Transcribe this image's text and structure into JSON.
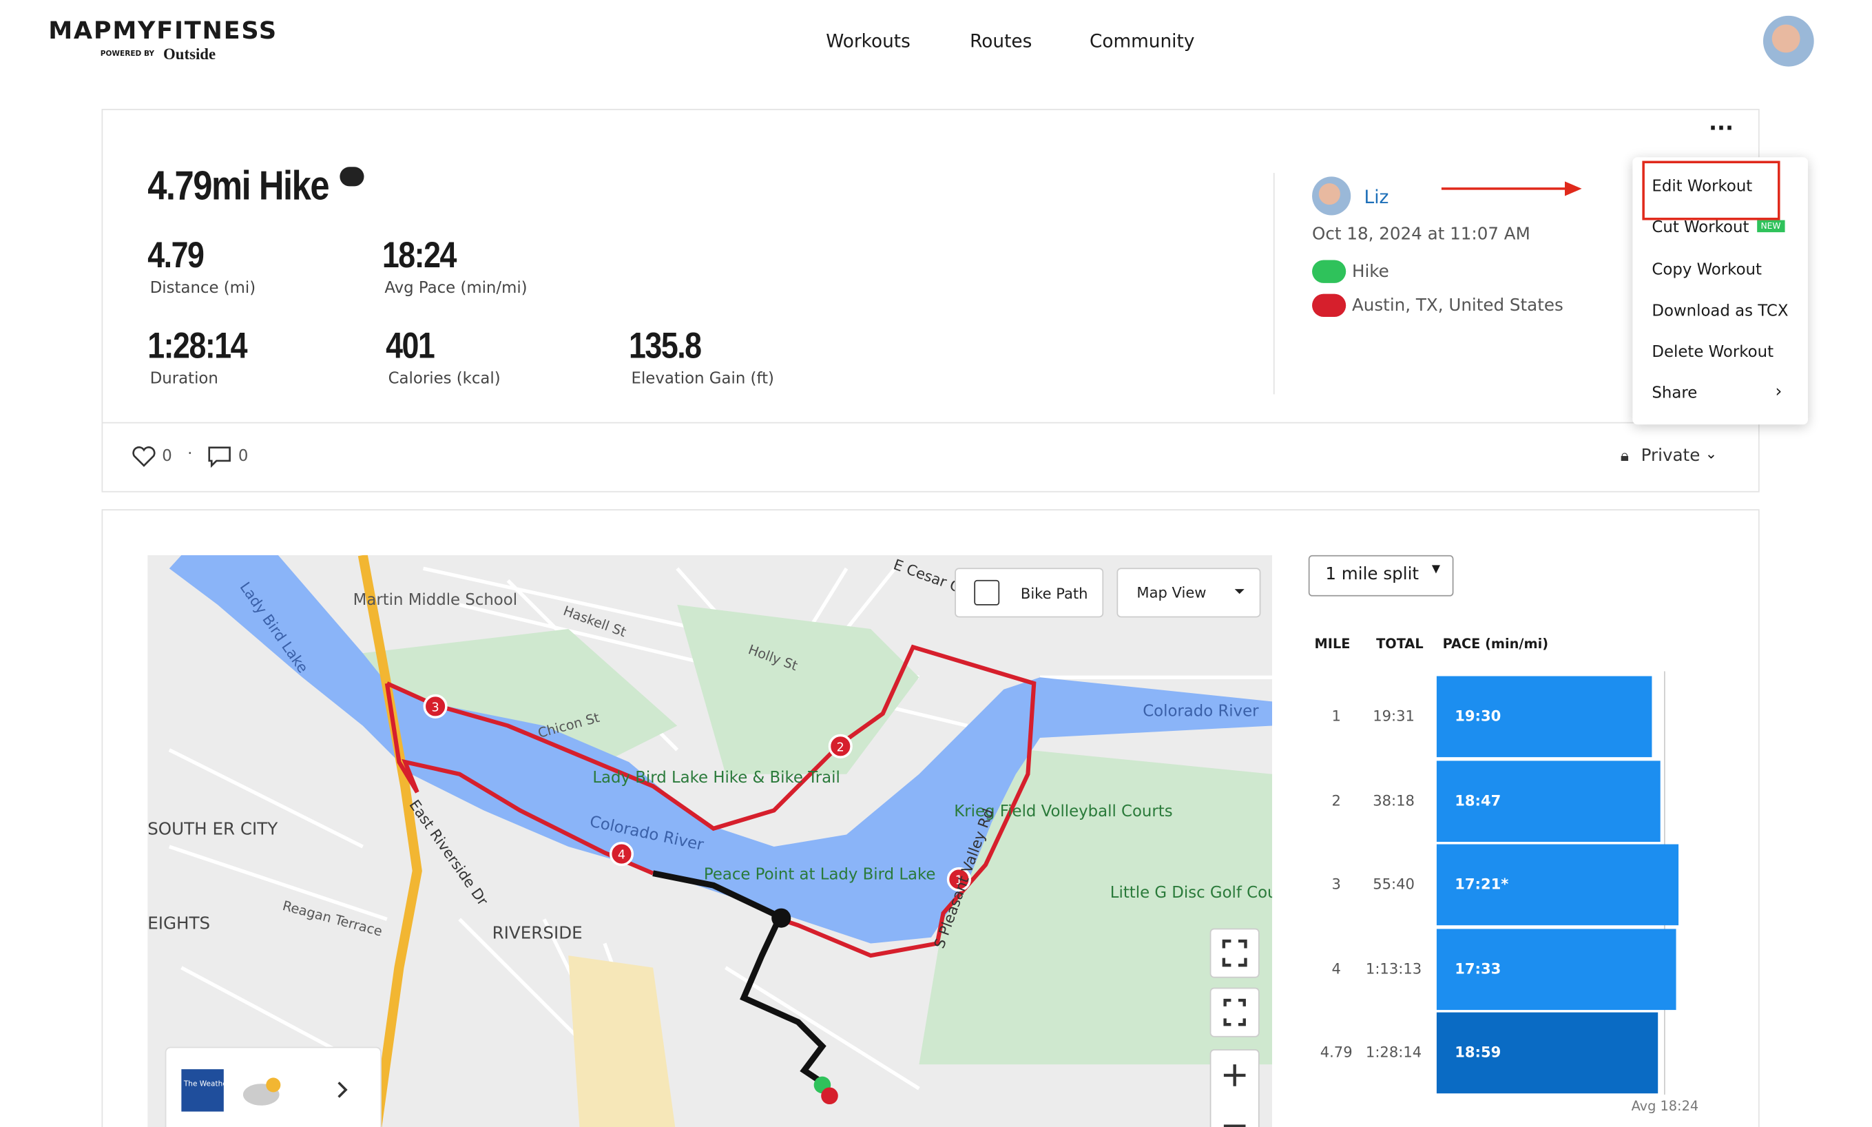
{
  "header": {
    "logo": "MAPMYFITNESS",
    "logo_sub": "POWERED BY",
    "logo_brand": "Outside",
    "nav": [
      "Workouts",
      "Routes",
      "Community"
    ]
  },
  "workout": {
    "title": "4.79mi Hike",
    "stats": [
      {
        "value": "4.79",
        "label": "Distance (mi)"
      },
      {
        "value": "18:24",
        "label": "Avg Pace (min/mi)"
      },
      {
        "value": "1:28:14",
        "label": "Duration"
      },
      {
        "value": "401",
        "label": "Calories (kcal)"
      },
      {
        "value": "135.8",
        "label": "Elevation Gain (ft)"
      }
    ],
    "user": "Liz",
    "date": "Oct 18, 2024 at 11:07 AM",
    "activity": "Hike",
    "location": "Austin, TX, United States",
    "likes": "0",
    "comments": "0",
    "privacy": "Private"
  },
  "menu": {
    "items": [
      "Edit Workout",
      "Cut Workout",
      "Copy Workout",
      "Download as TCX",
      "Delete Workout",
      "Share"
    ],
    "badge": "NEW"
  },
  "map": {
    "bike_path": "Bike Path",
    "view": "Map View",
    "labels": [
      "Martin Middle School",
      "Lady Bird Lake",
      "Lady Bird Lake Hike & Bike Trail",
      "Colorado River",
      "Colorado River",
      "Krieg Field Volleyball Courts",
      "Little G Disc Golf Cou",
      "Peace Point at Lady Bird Lake",
      "RIVERSIDE",
      "SOUTH ER CITY",
      "EIGHTS",
      "East Riverside Dr",
      "S Pleasant Valley Rd",
      "E Cesar C",
      "Haskell St",
      "Holly St",
      "Chicon St",
      "Reagan Terrace"
    ],
    "markers": [
      "1",
      "2",
      "3",
      "4"
    ],
    "weather": "The Weather Channel"
  },
  "splits": {
    "dropdown": "1 mile split",
    "headers": [
      "MILE",
      "TOTAL",
      "PACE (min/mi)"
    ],
    "rows": [
      [
        "1",
        "19:31",
        "19:30"
      ],
      [
        "2",
        "38:18",
        "18:47"
      ],
      [
        "3",
        "55:40",
        "17:21*"
      ],
      [
        "4",
        "1:13:13",
        "17:33"
      ],
      [
        "4.79",
        "1:28:14",
        "18:59"
      ]
    ],
    "avg": "Avg 18:24"
  }
}
